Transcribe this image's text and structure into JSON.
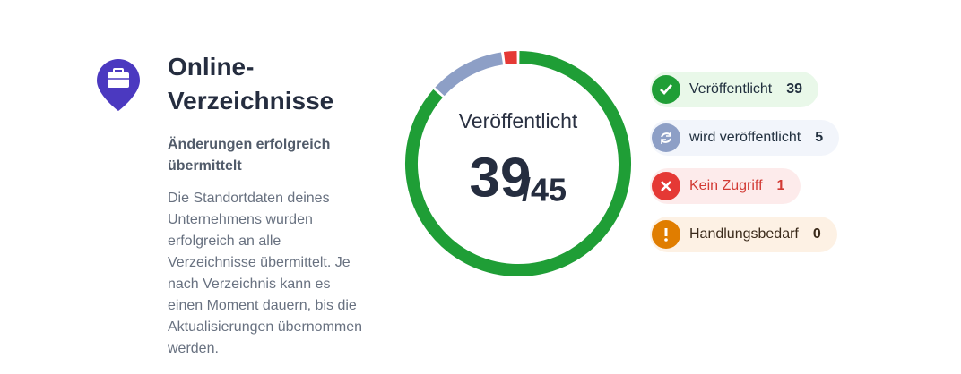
{
  "header": {
    "title": "Online-Verzeichnisse",
    "subtitle": "Änderungen erfolgreich übermittelt",
    "body": "Die Standortdaten deines Unternehmens wurden erfolgreich an alle Verzeichnisse übermittelt. Je nach Verzeichnis kann es einen Moment dauern, bis die Aktualisierungen übernommen werden."
  },
  "donut": {
    "label": "Veröffentlicht",
    "value": 39,
    "total": {
      "value": 45,
      "label": "/45"
    }
  },
  "legend": [
    {
      "label": "Veröffentlicht",
      "value": 39,
      "color": "#1f9e36",
      "background": "#e9f8e9",
      "text_color": "#22303f"
    },
    {
      "label": "wird veröffentlicht",
      "value": 5,
      "color": "#8d9fc6",
      "background": "#f2f5fb",
      "text_color": "#22303f"
    },
    {
      "label": "Kein Zugriff",
      "value": 1,
      "color": "#e53935",
      "background": "#fdebeb",
      "text_color": "#d23a34"
    },
    {
      "label": "Handlungsbedarf",
      "value": 0,
      "color": "#e07d00",
      "background": "#fdf1e4",
      "text_color": "#3a2a1a"
    }
  ]
}
